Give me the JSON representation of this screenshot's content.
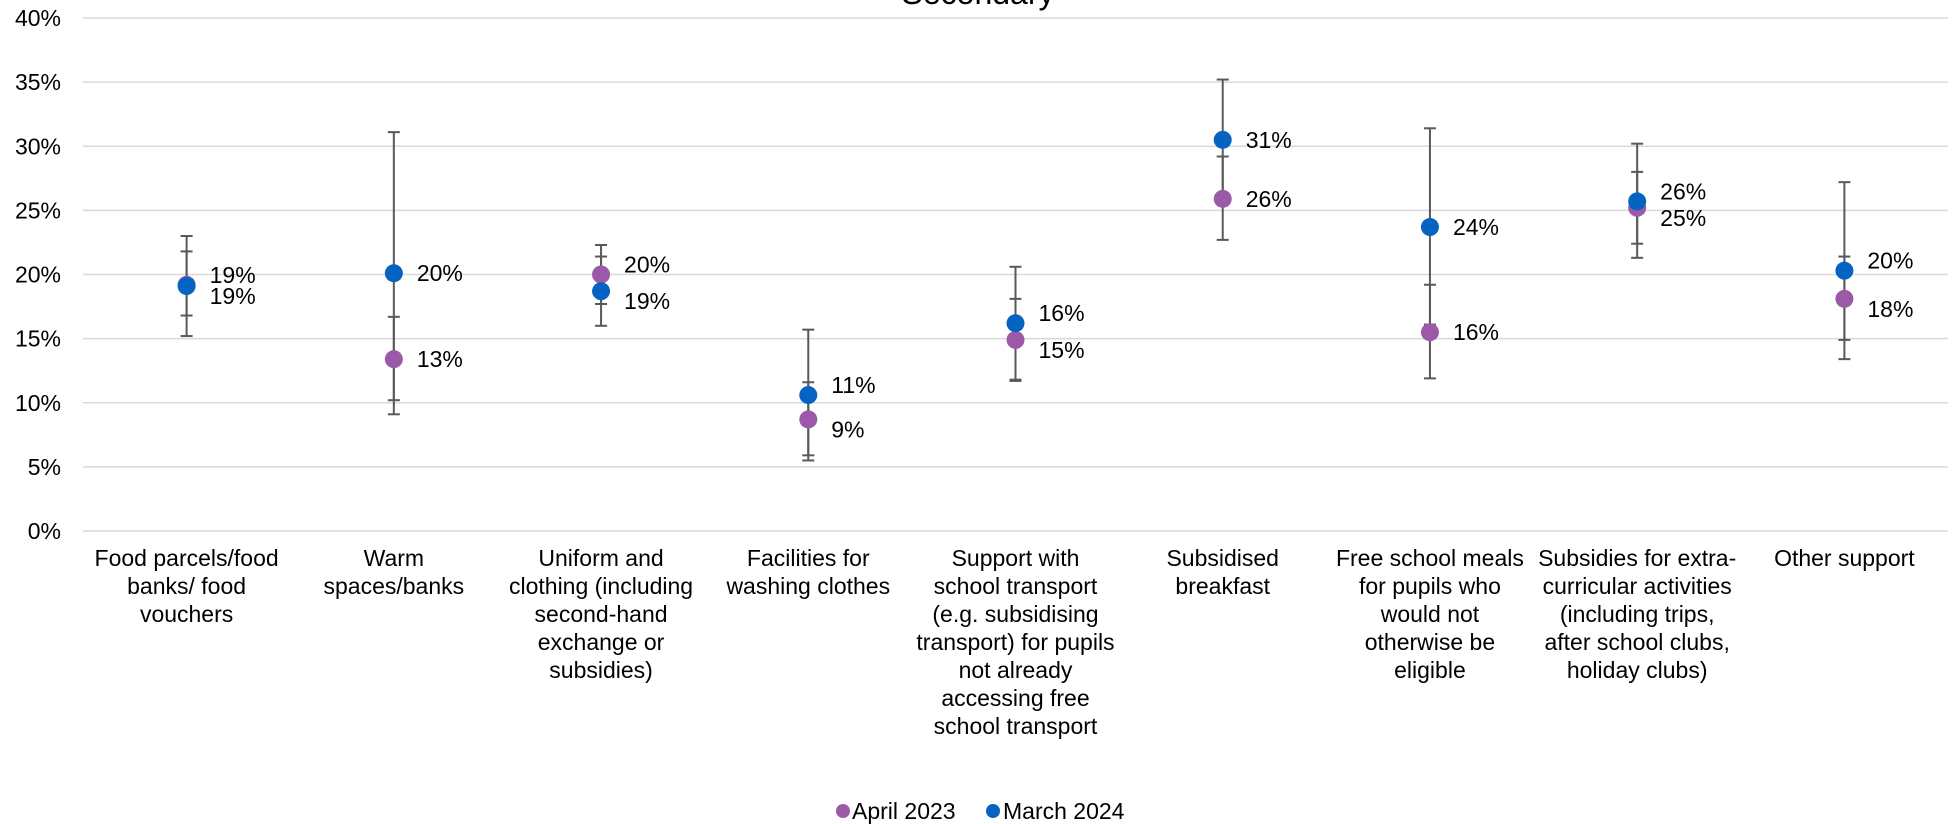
{
  "chart_data": {
    "type": "scatter",
    "title": "Secondary",
    "ylim": [
      0,
      40
    ],
    "y_ticks": [
      0,
      5,
      10,
      15,
      20,
      25,
      30,
      35,
      40
    ],
    "y_tick_format": "percent",
    "grid": true,
    "legend_position": "bottom",
    "categories": [
      "Food parcels/food banks/ food vouchers",
      "Warm spaces/banks",
      "Uniform and clothing (including second-hand exchange or subsidies)",
      "Facilities for washing clothes",
      "Support with school transport (e.g. subsidising transport) for pupils not already accessing free school transport",
      "Subsidised breakfast",
      "Free school meals for pupils who would not otherwise be eligible",
      "Subsidies for extra-curricular activities (including trips, after school clubs, holiday clubs)",
      "Other support"
    ],
    "category_lines": [
      [
        "Food parcels/food",
        "banks/ food",
        "vouchers"
      ],
      [
        "Warm",
        "spaces/banks"
      ],
      [
        "Uniform and",
        "clothing (including",
        "second-hand",
        "exchange or",
        "subsidies)"
      ],
      [
        "Facilities for",
        "washing clothes"
      ],
      [
        "Support with",
        "school transport",
        "(e.g. subsidising",
        "transport) for pupils",
        "not already",
        "accessing free",
        "school transport"
      ],
      [
        "Subsidised",
        "breakfast"
      ],
      [
        "Free school meals",
        "for pupils who",
        "would not",
        "otherwise be",
        "eligible"
      ],
      [
        "Subsidies for extra-",
        "curricular activities",
        "(including trips,",
        "after school clubs,",
        "holiday clubs)"
      ],
      [
        "Other support"
      ]
    ],
    "series": [
      {
        "name": "April 2023",
        "color": "#9B59A8",
        "values": [
          19.2,
          13.4,
          20.0,
          8.7,
          14.9,
          25.9,
          15.5,
          25.2,
          18.1
        ],
        "labels": [
          "19%",
          "13%",
          "20%",
          "9%",
          "15%",
          "26%",
          "16%",
          "25%",
          "18%"
        ],
        "error_low": [
          16.8,
          10.2,
          17.7,
          5.9,
          11.8,
          22.7,
          11.9,
          22.4,
          14.9
        ],
        "error_high": [
          21.8,
          16.7,
          22.3,
          11.6,
          18.1,
          29.2,
          19.2,
          28.0,
          21.4
        ]
      },
      {
        "name": "March 2024",
        "color": "#0563C1",
        "values": [
          19.1,
          20.1,
          18.7,
          10.6,
          16.2,
          30.5,
          23.7,
          25.7,
          20.3
        ],
        "labels": [
          "19%",
          "20%",
          "19%",
          "11%",
          "16%",
          "31%",
          "24%",
          "26%",
          "20%"
        ],
        "error_low": [
          15.2,
          9.1,
          16.0,
          5.5,
          11.7,
          26.0,
          16.1,
          21.3,
          13.4
        ],
        "error_high": [
          23.0,
          31.1,
          21.4,
          15.7,
          20.6,
          35.2,
          31.4,
          30.2,
          27.2
        ]
      }
    ]
  }
}
